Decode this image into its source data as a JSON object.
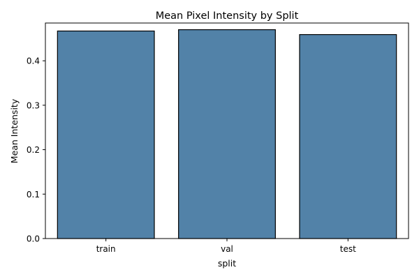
{
  "chart_data": {
    "type": "bar",
    "title": "Mean Pixel Intensity by Split",
    "xlabel": "split",
    "ylabel": "Mean Intensity",
    "categories": [
      "train",
      "val",
      "test"
    ],
    "values": [
      0.467,
      0.47,
      0.459
    ],
    "ylim": [
      0,
      0.485
    ],
    "yticks": [
      0.0,
      0.1,
      0.2,
      0.3,
      0.4
    ],
    "ytick_labels": [
      "0.0",
      "0.1",
      "0.2",
      "0.3",
      "0.4"
    ],
    "bar_color": "#5282a8",
    "bar_edge_color": "#000000",
    "grid": false,
    "legend": "none"
  }
}
